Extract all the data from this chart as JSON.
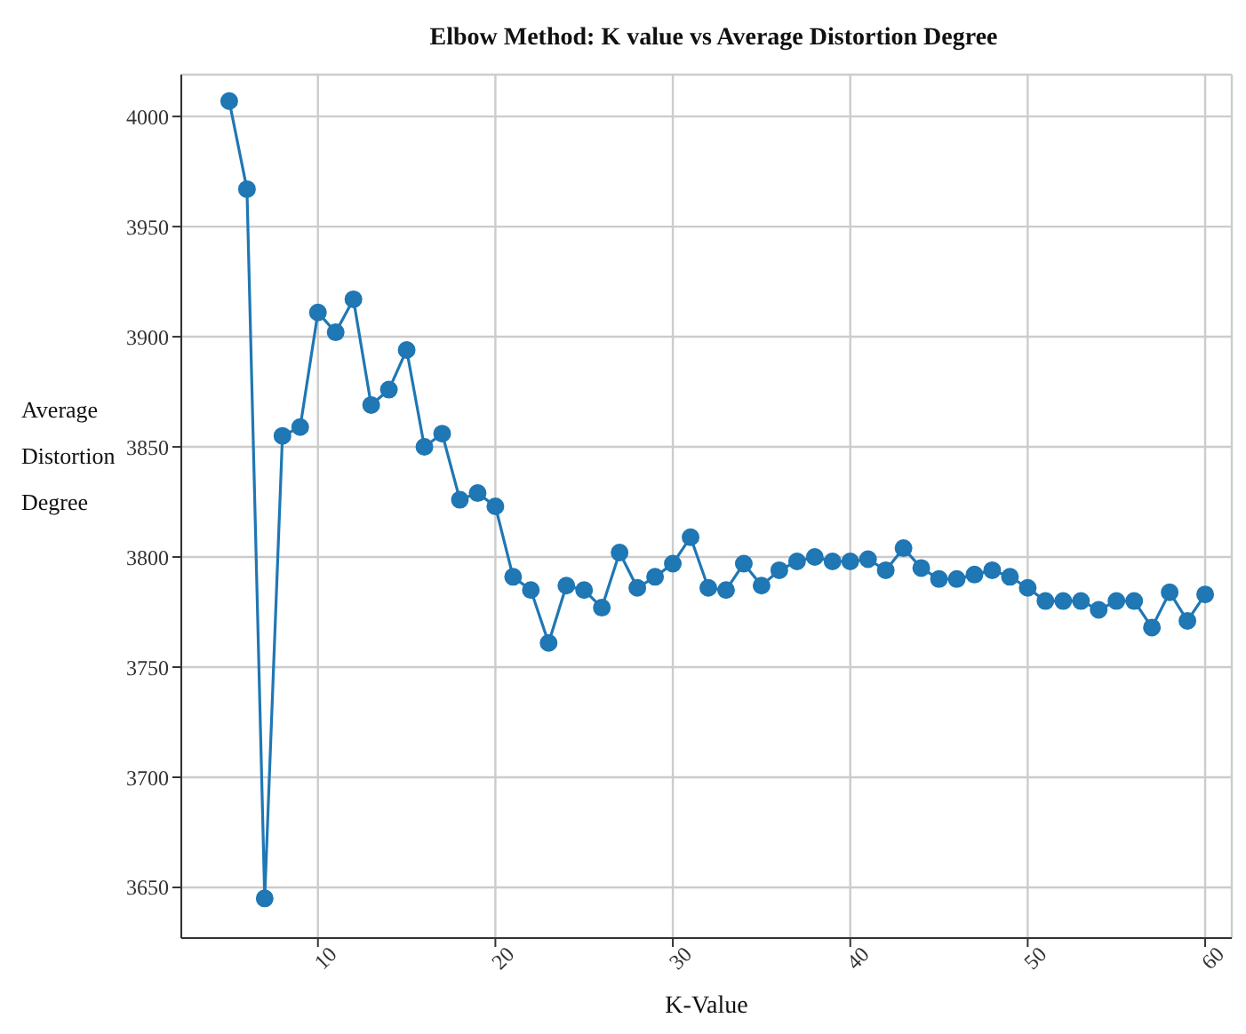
{
  "chart_data": {
    "type": "line",
    "title": "Elbow Method: K value vs Average Distortion Degree",
    "xlabel": "K-Value",
    "ylabel": "Average Distortion Degree",
    "x": [
      5,
      6,
      7,
      8,
      9,
      10,
      11,
      12,
      13,
      14,
      15,
      16,
      17,
      18,
      19,
      20,
      21,
      22,
      23,
      24,
      25,
      26,
      27,
      28,
      29,
      30,
      31,
      32,
      33,
      34,
      35,
      36,
      37,
      38,
      39,
      40,
      41,
      42,
      43,
      44,
      45,
      46,
      47,
      48,
      49,
      50,
      51,
      52,
      53,
      54,
      55,
      56,
      57,
      58,
      59,
      60
    ],
    "series": [
      {
        "color": "#1f77b4",
        "values": [
          4007,
          3967,
          3645,
          3855,
          3859,
          3911,
          3902,
          3917,
          3869,
          3876,
          3894,
          3850,
          3856,
          3826,
          3829,
          3823,
          3791,
          3785,
          3761,
          3787,
          3785,
          3777,
          3802,
          3786,
          3791,
          3797,
          3809,
          3786,
          3785,
          3797,
          3787,
          3794,
          3798,
          3800,
          3798,
          3798,
          3799,
          3794,
          3804,
          3795,
          3790,
          3790,
          3792,
          3794,
          3791,
          3786,
          3780,
          3780,
          3780,
          3776,
          3780,
          3780,
          3768,
          3784,
          3771,
          3783
        ]
      }
    ],
    "xlim": [
      2.3,
      61.5
    ],
    "ylim": [
      3627,
      4019
    ],
    "xticks": [
      10,
      20,
      30,
      40,
      50,
      60
    ],
    "yticks": [
      3650,
      3700,
      3750,
      3800,
      3850,
      3900,
      3950,
      4000
    ],
    "grid": true,
    "marker": "circle",
    "line_style": "solid"
  }
}
